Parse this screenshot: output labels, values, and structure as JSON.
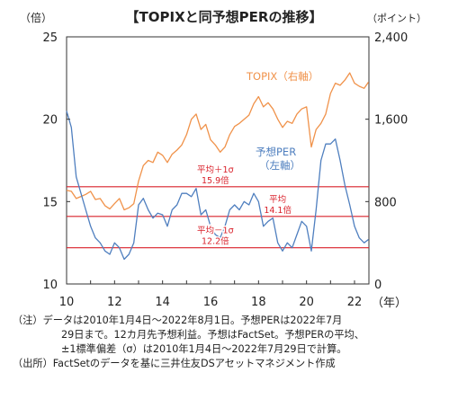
{
  "chart_data": {
    "type": "line",
    "title": "【TOPIXと同予想PERの推移】",
    "left_axis": {
      "unit_label": "（倍）",
      "ticks": [
        10,
        15,
        20,
        25
      ],
      "ylim": [
        10,
        25
      ]
    },
    "right_axis": {
      "unit_label": "（ポイント）",
      "ticks": [
        "0",
        "800",
        "1,600",
        "2,400"
      ],
      "ylim": [
        0,
        2400
      ]
    },
    "x_axis": {
      "unit_label": "（年）",
      "ticks": [
        "10",
        "12",
        "14",
        "16",
        "18",
        "20",
        "22"
      ],
      "xlim": [
        2010.0,
        2022.6
      ]
    },
    "series": [
      {
        "name": "TOPIX（右軸）",
        "axis": "right",
        "color": "#f0924a",
        "x": [
          2010.0,
          2010.2,
          2010.4,
          2010.6,
          2010.8,
          2011.0,
          2011.2,
          2011.4,
          2011.6,
          2011.8,
          2012.0,
          2012.2,
          2012.4,
          2012.6,
          2012.8,
          2013.0,
          2013.2,
          2013.4,
          2013.6,
          2013.8,
          2014.0,
          2014.2,
          2014.4,
          2014.6,
          2014.8,
          2015.0,
          2015.2,
          2015.4,
          2015.6,
          2015.8,
          2016.0,
          2016.2,
          2016.4,
          2016.6,
          2016.8,
          2017.0,
          2017.2,
          2017.4,
          2017.6,
          2017.8,
          2018.0,
          2018.2,
          2018.4,
          2018.6,
          2018.8,
          2019.0,
          2019.2,
          2019.4,
          2019.6,
          2019.8,
          2020.0,
          2020.2,
          2020.4,
          2020.6,
          2020.8,
          2021.0,
          2021.2,
          2021.4,
          2021.6,
          2021.8,
          2022.0,
          2022.2,
          2022.4,
          2022.58
        ],
        "values": [
          910,
          900,
          830,
          850,
          870,
          900,
          820,
          830,
          760,
          730,
          780,
          830,
          720,
          740,
          780,
          1000,
          1150,
          1200,
          1180,
          1280,
          1250,
          1180,
          1260,
          1300,
          1350,
          1450,
          1600,
          1650,
          1500,
          1550,
          1400,
          1350,
          1280,
          1330,
          1450,
          1530,
          1560,
          1600,
          1640,
          1750,
          1820,
          1720,
          1760,
          1700,
          1600,
          1520,
          1580,
          1560,
          1650,
          1700,
          1720,
          1330,
          1500,
          1560,
          1650,
          1850,
          1950,
          1930,
          1980,
          2050,
          1950,
          1920,
          1900,
          1960
        ]
      },
      {
        "name": "予想PER（左軸）",
        "axis": "left",
        "color": "#4f7fbf",
        "x": [
          2010.0,
          2010.2,
          2010.4,
          2010.6,
          2010.8,
          2011.0,
          2011.2,
          2011.4,
          2011.6,
          2011.8,
          2012.0,
          2012.2,
          2012.4,
          2012.6,
          2012.8,
          2013.0,
          2013.2,
          2013.4,
          2013.6,
          2013.8,
          2014.0,
          2014.2,
          2014.4,
          2014.6,
          2014.8,
          2015.0,
          2015.2,
          2015.4,
          2015.6,
          2015.8,
          2016.0,
          2016.2,
          2016.4,
          2016.6,
          2016.8,
          2017.0,
          2017.2,
          2017.4,
          2017.6,
          2017.8,
          2018.0,
          2018.2,
          2018.4,
          2018.6,
          2018.8,
          2019.0,
          2019.2,
          2019.4,
          2019.6,
          2019.8,
          2020.0,
          2020.2,
          2020.4,
          2020.6,
          2020.8,
          2021.0,
          2021.2,
          2021.4,
          2021.6,
          2021.8,
          2022.0,
          2022.2,
          2022.4,
          2022.58
        ],
        "values": [
          20.5,
          19.5,
          16.5,
          15.5,
          14.5,
          13.5,
          12.8,
          12.5,
          12.0,
          11.8,
          12.5,
          12.2,
          11.5,
          11.8,
          12.5,
          14.8,
          15.2,
          14.5,
          14.0,
          14.3,
          14.2,
          13.5,
          14.5,
          14.8,
          15.5,
          15.5,
          15.3,
          15.8,
          14.2,
          14.5,
          13.5,
          13.0,
          12.8,
          13.5,
          14.5,
          14.8,
          14.5,
          15.0,
          14.8,
          15.5,
          15.0,
          13.5,
          13.8,
          14.0,
          12.5,
          12.0,
          12.5,
          12.2,
          13.0,
          13.8,
          13.5,
          12.0,
          14.5,
          17.5,
          18.5,
          18.5,
          18.8,
          17.5,
          16.0,
          14.8,
          13.5,
          12.8,
          12.5,
          12.7
        ]
      }
    ],
    "reference_lines": [
      {
        "value": 15.9,
        "label_top": "平均＋1σ",
        "label_bottom": "15.9倍"
      },
      {
        "value": 14.1,
        "label_top": "平均",
        "label_bottom": "14.1倍"
      },
      {
        "value": 12.2,
        "label_top": "平均－1σ",
        "label_bottom": "12.2倍"
      }
    ],
    "reference_color": "#d9202a",
    "series_labels": {
      "topix": "TOPIX（右軸）",
      "per_line1": "予想PER",
      "per_line2": "（左軸）"
    }
  },
  "notes": {
    "note_tag": "（注）",
    "note_line1": "データは2010年1月4日～2022年8月1日。予想PERは2022年7月",
    "note_line2": "29日まで。12カ月先予想利益。予想はFactSet。予想PERの平均、",
    "note_line3": "±1標準偏差（σ）は2010年1月4日～2022年7月29日で計算。",
    "source_tag": "（出所）",
    "source_text": "FactSetのデータを基に三井住友DSアセットマネジメント作成"
  }
}
